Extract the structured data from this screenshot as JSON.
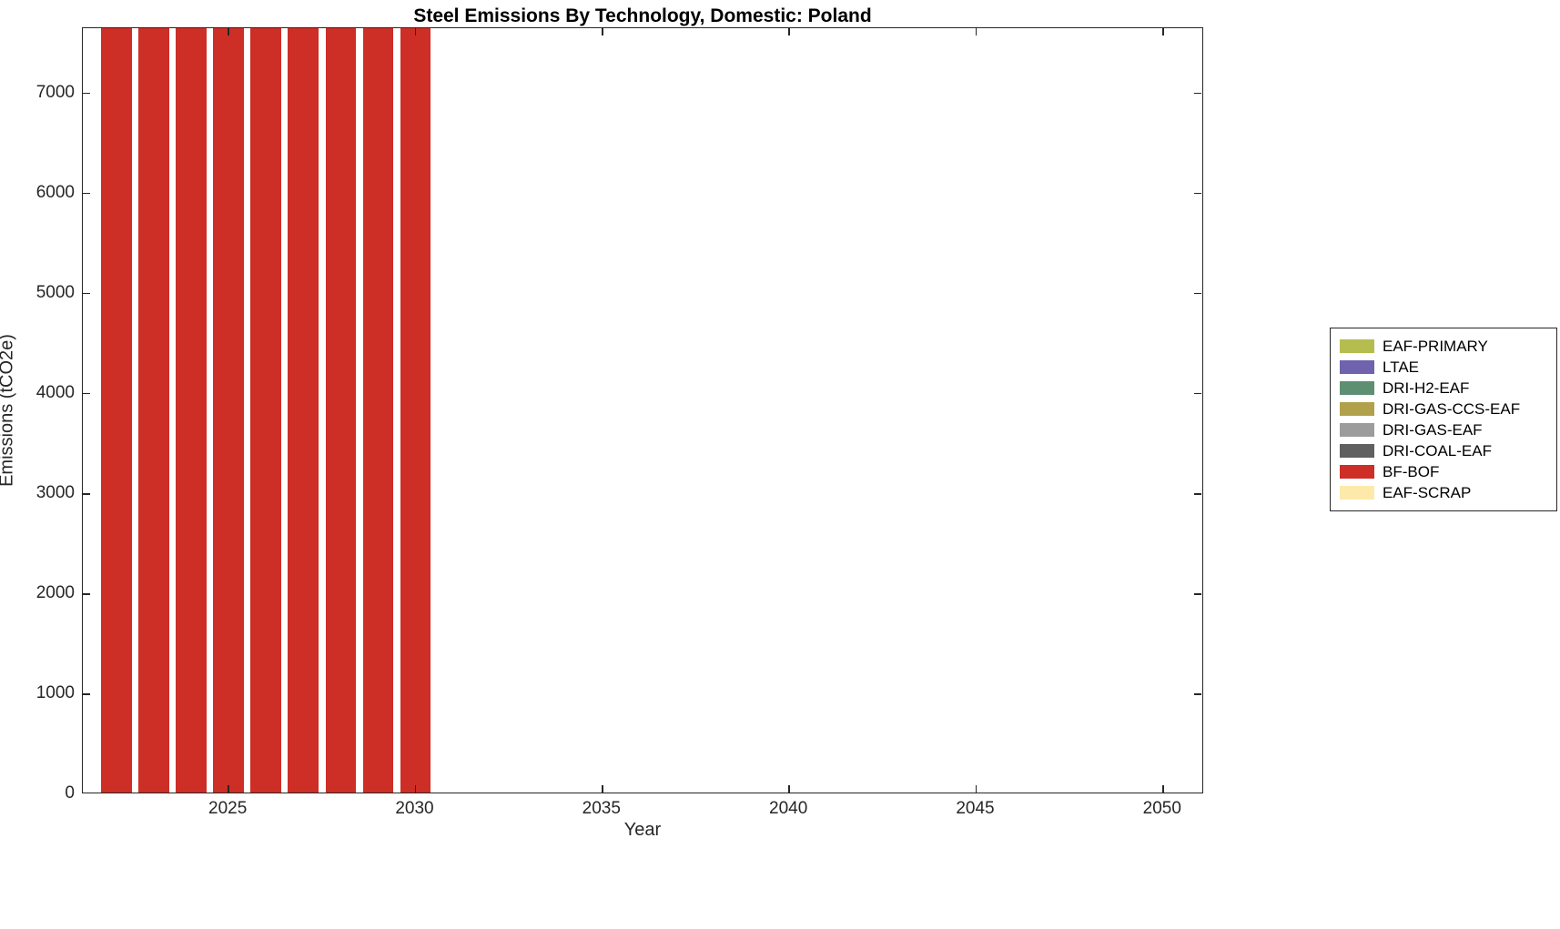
{
  "chart_data": {
    "type": "bar",
    "title": "Steel Emissions By Technology, Domestic: Poland",
    "xlabel": "Year",
    "ylabel": "Emissions (tCO2e)",
    "xlim": [
      2021.1,
      2051.1
    ],
    "ylim": [
      0,
      7650
    ],
    "x_ticks": [
      2025,
      2030,
      2035,
      2040,
      2045,
      2050
    ],
    "y_ticks": [
      0,
      1000,
      2000,
      3000,
      4000,
      5000,
      6000,
      7000
    ],
    "grid": false,
    "legend_position": "right-outside",
    "bar_width_years": 0.82,
    "series": [
      {
        "name": "BF-BOF",
        "color": "#cd2e26",
        "x": [
          2022,
          2023,
          2024,
          2025,
          2026,
          2027,
          2028,
          2029,
          2030
        ],
        "values": [
          7650,
          7650,
          7650,
          7650,
          7650,
          7650,
          7650,
          7650,
          7650
        ],
        "note": "bars reach the top of the y-axis (clipped at ymax)"
      }
    ],
    "legend": [
      {
        "label": "EAF-PRIMARY",
        "color": "#b5bd4e"
      },
      {
        "label": "LTAE",
        "color": "#6f63ae"
      },
      {
        "label": "DRI-H2-EAF",
        "color": "#5e8f72"
      },
      {
        "label": "DRI-GAS-CCS-EAF",
        "color": "#b2a14b"
      },
      {
        "label": "DRI-GAS-EAF",
        "color": "#9c9c9c"
      },
      {
        "label": "DRI-COAL-EAF",
        "color": "#606060"
      },
      {
        "label": "BF-BOF",
        "color": "#cd2e26"
      },
      {
        "label": "EAF-SCRAP",
        "color": "#fde9a9"
      }
    ]
  }
}
